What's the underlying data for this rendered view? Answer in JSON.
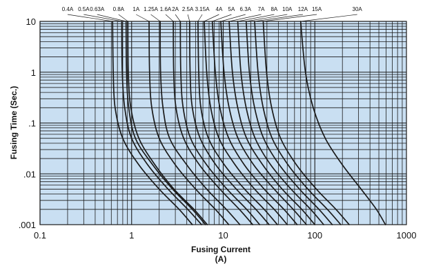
{
  "chart_data": {
    "type": "line",
    "title": "",
    "xlabel": "Fusing Current",
    "xlabel_unit": "(A)",
    "ylabel": "Fusing Time (Sec.)",
    "x_scale": "log",
    "y_scale": "log",
    "xlim": [
      0.1,
      1000
    ],
    "ylim": [
      0.001,
      10
    ],
    "grid": true,
    "legend": "rating labels along top edge",
    "colors": {
      "plot_background": "#c9dff2",
      "grid_line": "#1a1a1a",
      "curve": "#1a1a1a"
    },
    "x_ticks": [
      {
        "value": 0.1,
        "label": "0.1"
      },
      {
        "value": 1,
        "label": "1"
      },
      {
        "value": 10,
        "label": "10"
      },
      {
        "value": 100,
        "label": "100"
      },
      {
        "value": 1000,
        "label": "1000"
      }
    ],
    "y_ticks": [
      {
        "value": 10,
        "label": "10"
      },
      {
        "value": 1,
        "label": "1"
      },
      {
        "value": 0.1,
        "label": ".1"
      },
      {
        "value": 0.01,
        "label": ".01"
      },
      {
        "value": 0.001,
        "label": ".001"
      }
    ],
    "series": [
      {
        "name": "0.4A",
        "label_x": 0.2,
        "points": [
          [
            0.62,
            10
          ],
          [
            0.63,
            1
          ],
          [
            0.66,
            0.2
          ],
          [
            0.8,
            0.05
          ],
          [
            1.2,
            0.015
          ],
          [
            2,
            0.005
          ],
          [
            3.3,
            0.002
          ],
          [
            4.6,
            0.001
          ]
        ]
      },
      {
        "name": "0.5A",
        "label_x": 0.3,
        "points": [
          [
            0.78,
            10
          ],
          [
            0.79,
            1
          ],
          [
            0.84,
            0.2
          ],
          [
            1,
            0.05
          ],
          [
            1.5,
            0.015
          ],
          [
            2.5,
            0.005
          ],
          [
            4.1,
            0.002
          ],
          [
            5.8,
            0.001
          ]
        ]
      },
      {
        "name": "0.63A",
        "label_x": 0.42,
        "points": [
          [
            0.87,
            10
          ],
          [
            0.88,
            1
          ],
          [
            0.93,
            0.2
          ],
          [
            1.1,
            0.05
          ],
          [
            1.7,
            0.015
          ],
          [
            2.8,
            0.005
          ],
          [
            4.6,
            0.002
          ],
          [
            6.4,
            0.001
          ]
        ]
      },
      {
        "name": "0.8A",
        "label_x": 0.72,
        "points": [
          [
            0.91,
            10
          ],
          [
            0.92,
            1
          ],
          [
            0.98,
            0.2
          ],
          [
            1.2,
            0.05
          ],
          [
            1.8,
            0.015
          ],
          [
            2.9,
            0.005
          ],
          [
            4.8,
            0.002
          ],
          [
            6.7,
            0.001
          ]
        ]
      },
      {
        "name": "1A",
        "label_x": 1.12,
        "points": [
          [
            1.55,
            10
          ],
          [
            1.57,
            1
          ],
          [
            1.66,
            0.2
          ],
          [
            2,
            0.05
          ],
          [
            3,
            0.015
          ],
          [
            5,
            0.005
          ],
          [
            8.2,
            0.002
          ],
          [
            11.5,
            0.001
          ]
        ]
      },
      {
        "name": "1.25A",
        "label_x": 1.62,
        "points": [
          [
            2.05,
            10
          ],
          [
            2.07,
            1
          ],
          [
            2.2,
            0.2
          ],
          [
            2.6,
            0.05
          ],
          [
            4,
            0.015
          ],
          [
            6.6,
            0.005
          ],
          [
            10.8,
            0.002
          ],
          [
            15.2,
            0.001
          ]
        ]
      },
      {
        "name": "1.6A",
        "label_x": 2.35,
        "points": [
          [
            2.85,
            10
          ],
          [
            2.88,
            1
          ],
          [
            3.05,
            0.2
          ],
          [
            3.7,
            0.05
          ],
          [
            5.5,
            0.015
          ],
          [
            9.2,
            0.005
          ],
          [
            15,
            0.002
          ],
          [
            21,
            0.001
          ]
        ]
      },
      {
        "name": "2A",
        "label_x": 3.0,
        "points": [
          [
            3.4,
            10
          ],
          [
            3.44,
            1
          ],
          [
            3.65,
            0.2
          ],
          [
            4.4,
            0.05
          ],
          [
            6.6,
            0.015
          ],
          [
            11,
            0.005
          ],
          [
            18,
            0.002
          ],
          [
            25,
            0.001
          ]
        ]
      },
      {
        "name": "2.5A",
        "label_x": 4.1,
        "points": [
          [
            4.3,
            10
          ],
          [
            4.35,
            1
          ],
          [
            4.6,
            0.2
          ],
          [
            5.6,
            0.05
          ],
          [
            8.3,
            0.015
          ],
          [
            13.9,
            0.005
          ],
          [
            22.7,
            0.002
          ],
          [
            31.7,
            0.001
          ]
        ]
      },
      {
        "name": "3.15A",
        "label_x": 5.9,
        "points": [
          [
            5.3,
            10
          ],
          [
            5.4,
            1
          ],
          [
            5.7,
            0.2
          ],
          [
            6.9,
            0.05
          ],
          [
            10.3,
            0.015
          ],
          [
            17.1,
            0.005
          ],
          [
            28,
            0.002
          ],
          [
            39,
            0.001
          ]
        ]
      },
      {
        "name": "4A",
        "label_x": 9.0,
        "points": [
          [
            6.2,
            10
          ],
          [
            6.6,
            1
          ],
          [
            7.3,
            0.2
          ],
          [
            9,
            0.05
          ],
          [
            13.5,
            0.015
          ],
          [
            22,
            0.005
          ],
          [
            36,
            0.002
          ],
          [
            50,
            0.001
          ]
        ]
      },
      {
        "name": "5A",
        "label_x": 12.3,
        "points": [
          [
            7.6,
            10
          ],
          [
            8.2,
            1
          ],
          [
            9.2,
            0.2
          ],
          [
            11.5,
            0.05
          ],
          [
            17,
            0.015
          ],
          [
            28,
            0.005
          ],
          [
            46,
            0.002
          ],
          [
            64,
            0.001
          ]
        ]
      },
      {
        "name": "6.3A",
        "label_x": 17.5,
        "points": [
          [
            9.4,
            10
          ],
          [
            10.2,
            1
          ],
          [
            11.6,
            0.2
          ],
          [
            14.5,
            0.05
          ],
          [
            21.5,
            0.015
          ],
          [
            36,
            0.005
          ],
          [
            58,
            0.002
          ],
          [
            81,
            0.001
          ]
        ]
      },
      {
        "name": "7A",
        "label_x": 26,
        "points": [
          [
            11.6,
            10
          ],
          [
            12.6,
            1
          ],
          [
            14.4,
            0.2
          ],
          [
            18,
            0.05
          ],
          [
            27,
            0.015
          ],
          [
            44,
            0.005
          ],
          [
            72,
            0.002
          ],
          [
            100,
            0.001
          ]
        ]
      },
      {
        "name": "8A",
        "label_x": 36,
        "points": [
          [
            14.4,
            10
          ],
          [
            15.6,
            1
          ],
          [
            17.8,
            0.2
          ],
          [
            22.3,
            0.05
          ],
          [
            33,
            0.015
          ],
          [
            55,
            0.005
          ],
          [
            90,
            0.002
          ],
          [
            125,
            0.001
          ]
        ]
      },
      {
        "name": "10A",
        "label_x": 50,
        "points": [
          [
            17.8,
            10
          ],
          [
            19.3,
            1
          ],
          [
            22,
            0.2
          ],
          [
            27.6,
            0.05
          ],
          [
            41,
            0.015
          ],
          [
            68,
            0.005
          ],
          [
            111,
            0.002
          ],
          [
            155,
            0.001
          ]
        ]
      },
      {
        "name": "12A",
        "label_x": 74,
        "points": [
          [
            22,
            10
          ],
          [
            24,
            1
          ],
          [
            27.3,
            0.2
          ],
          [
            34.2,
            0.05
          ],
          [
            51,
            0.015
          ],
          [
            84,
            0.005
          ],
          [
            137,
            0.002
          ],
          [
            192,
            0.001
          ]
        ]
      },
      {
        "name": "15A",
        "label_x": 105,
        "points": [
          [
            27.3,
            10
          ],
          [
            29.7,
            1
          ],
          [
            33.8,
            0.2
          ],
          [
            42.3,
            0.05
          ],
          [
            63,
            0.015
          ],
          [
            104,
            0.005
          ],
          [
            170,
            0.002
          ],
          [
            237,
            0.001
          ]
        ]
      },
      {
        "name": "30A",
        "label_x": 290,
        "points": [
          [
            70,
            10
          ],
          [
            79,
            1
          ],
          [
            96,
            0.2
          ],
          [
            130,
            0.05
          ],
          [
            200,
            0.015
          ],
          [
            320,
            0.005
          ],
          [
            470,
            0.002
          ],
          [
            590,
            0.001
          ]
        ]
      }
    ]
  }
}
